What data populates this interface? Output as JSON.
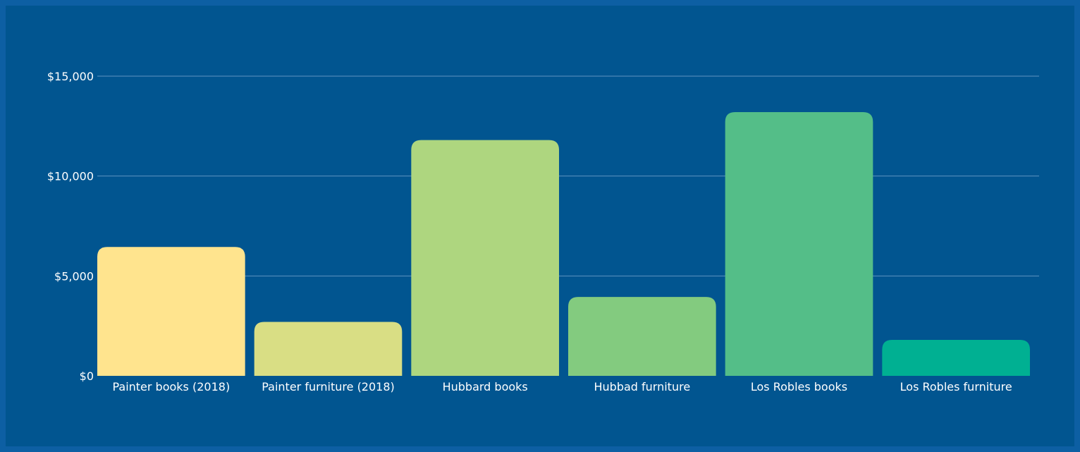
{
  "chart_data": {
    "type": "bar",
    "categories": [
      "Painter books (2018)",
      "Painter furniture (2018)",
      "Hubbard books",
      "Hubbad furniture",
      "Los Robles books",
      "Los Robles furniture"
    ],
    "values": [
      6450,
      2700,
      11800,
      3950,
      13200,
      1800
    ],
    "colors": [
      "#ffe48e",
      "#d9de84",
      "#aed67f",
      "#83cb7f",
      "#54be88",
      "#00b092"
    ],
    "title": "",
    "xlabel": "",
    "ylabel": "",
    "ylim": [
      0,
      15000
    ],
    "yticks": [
      0,
      5000,
      10000,
      15000
    ],
    "ytick_labels": [
      "$0",
      "$5,000",
      "$10,000",
      "$15,000"
    ],
    "grid": true,
    "legend": "none"
  }
}
